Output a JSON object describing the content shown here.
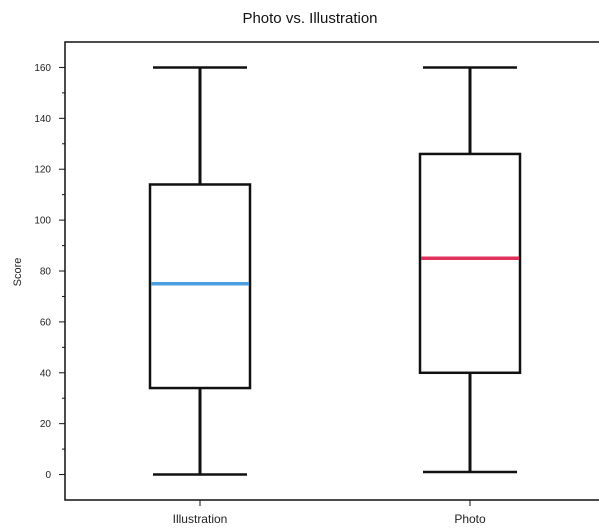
{
  "chart_data": {
    "type": "boxplot",
    "title": "Photo vs. Illustration",
    "xlabel": "",
    "ylabel": "Score",
    "ylim": [
      -10,
      170
    ],
    "yticks": [
      0,
      20,
      40,
      60,
      80,
      100,
      120,
      140,
      160
    ],
    "grid": false,
    "categories": [
      "Illustration",
      "Photo"
    ],
    "boxes": [
      {
        "category": "Illustration",
        "min": 0,
        "q1": 34,
        "median": 75,
        "q3": 114,
        "max": 160,
        "median_color": "#4a9fe0"
      },
      {
        "category": "Photo",
        "min": 1,
        "q1": 40,
        "median": 85,
        "q3": 126,
        "max": 160,
        "median_color": "#e0305c"
      }
    ]
  },
  "colors": {
    "box_stroke": "#111111",
    "axis": "#111111",
    "background": "#ffffff"
  }
}
